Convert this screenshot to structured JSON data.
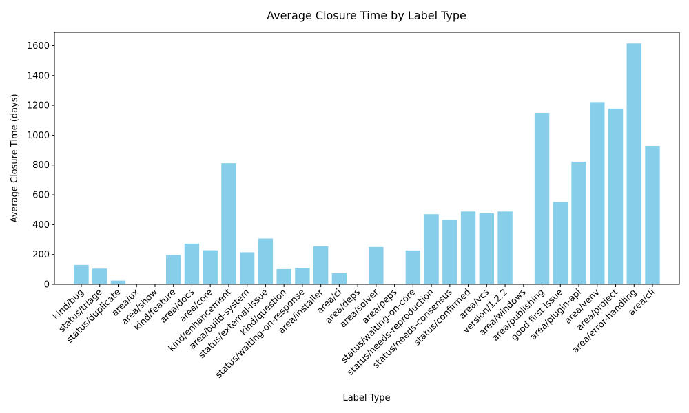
{
  "chart_data": {
    "type": "bar",
    "title": "Average Closure Time by Label Type",
    "xlabel": "Label Type",
    "ylabel": "Average Closure Time (days)",
    "ylim": [
      0,
      1690
    ],
    "yticks": [
      0,
      200,
      400,
      600,
      800,
      1000,
      1200,
      1400,
      1600
    ],
    "grid": false,
    "bar_color": "#87ceeb",
    "categories": [
      "kind/bug",
      "status/triage",
      "status/duplicate",
      "area/ux",
      "area/show",
      "kind/feature",
      "area/docs",
      "area/core",
      "kind/enhancement",
      "area/build-system",
      "status/external-issue",
      "kind/question",
      "status/waiting-on-response",
      "area/installer",
      "area/ci",
      "area/deps",
      "area/solver",
      "area/peps",
      "status/waiting-on-core",
      "status/needs-reproduction",
      "status/needs-consensus",
      "status/confirmed",
      "area/vcs",
      "version/1.2.2",
      "area/windows",
      "area/publishing",
      "good first issue",
      "area/plugin-api",
      "area/venv",
      "area/project",
      "area/error-handling",
      "area/cli"
    ],
    "values": [
      130,
      105,
      25,
      0,
      0,
      197,
      273,
      228,
      812,
      215,
      307,
      102,
      110,
      255,
      75,
      0,
      250,
      0,
      227,
      470,
      432,
      488,
      476,
      488,
      0,
      1150,
      552,
      822,
      1222,
      1178,
      1615,
      928
    ]
  }
}
